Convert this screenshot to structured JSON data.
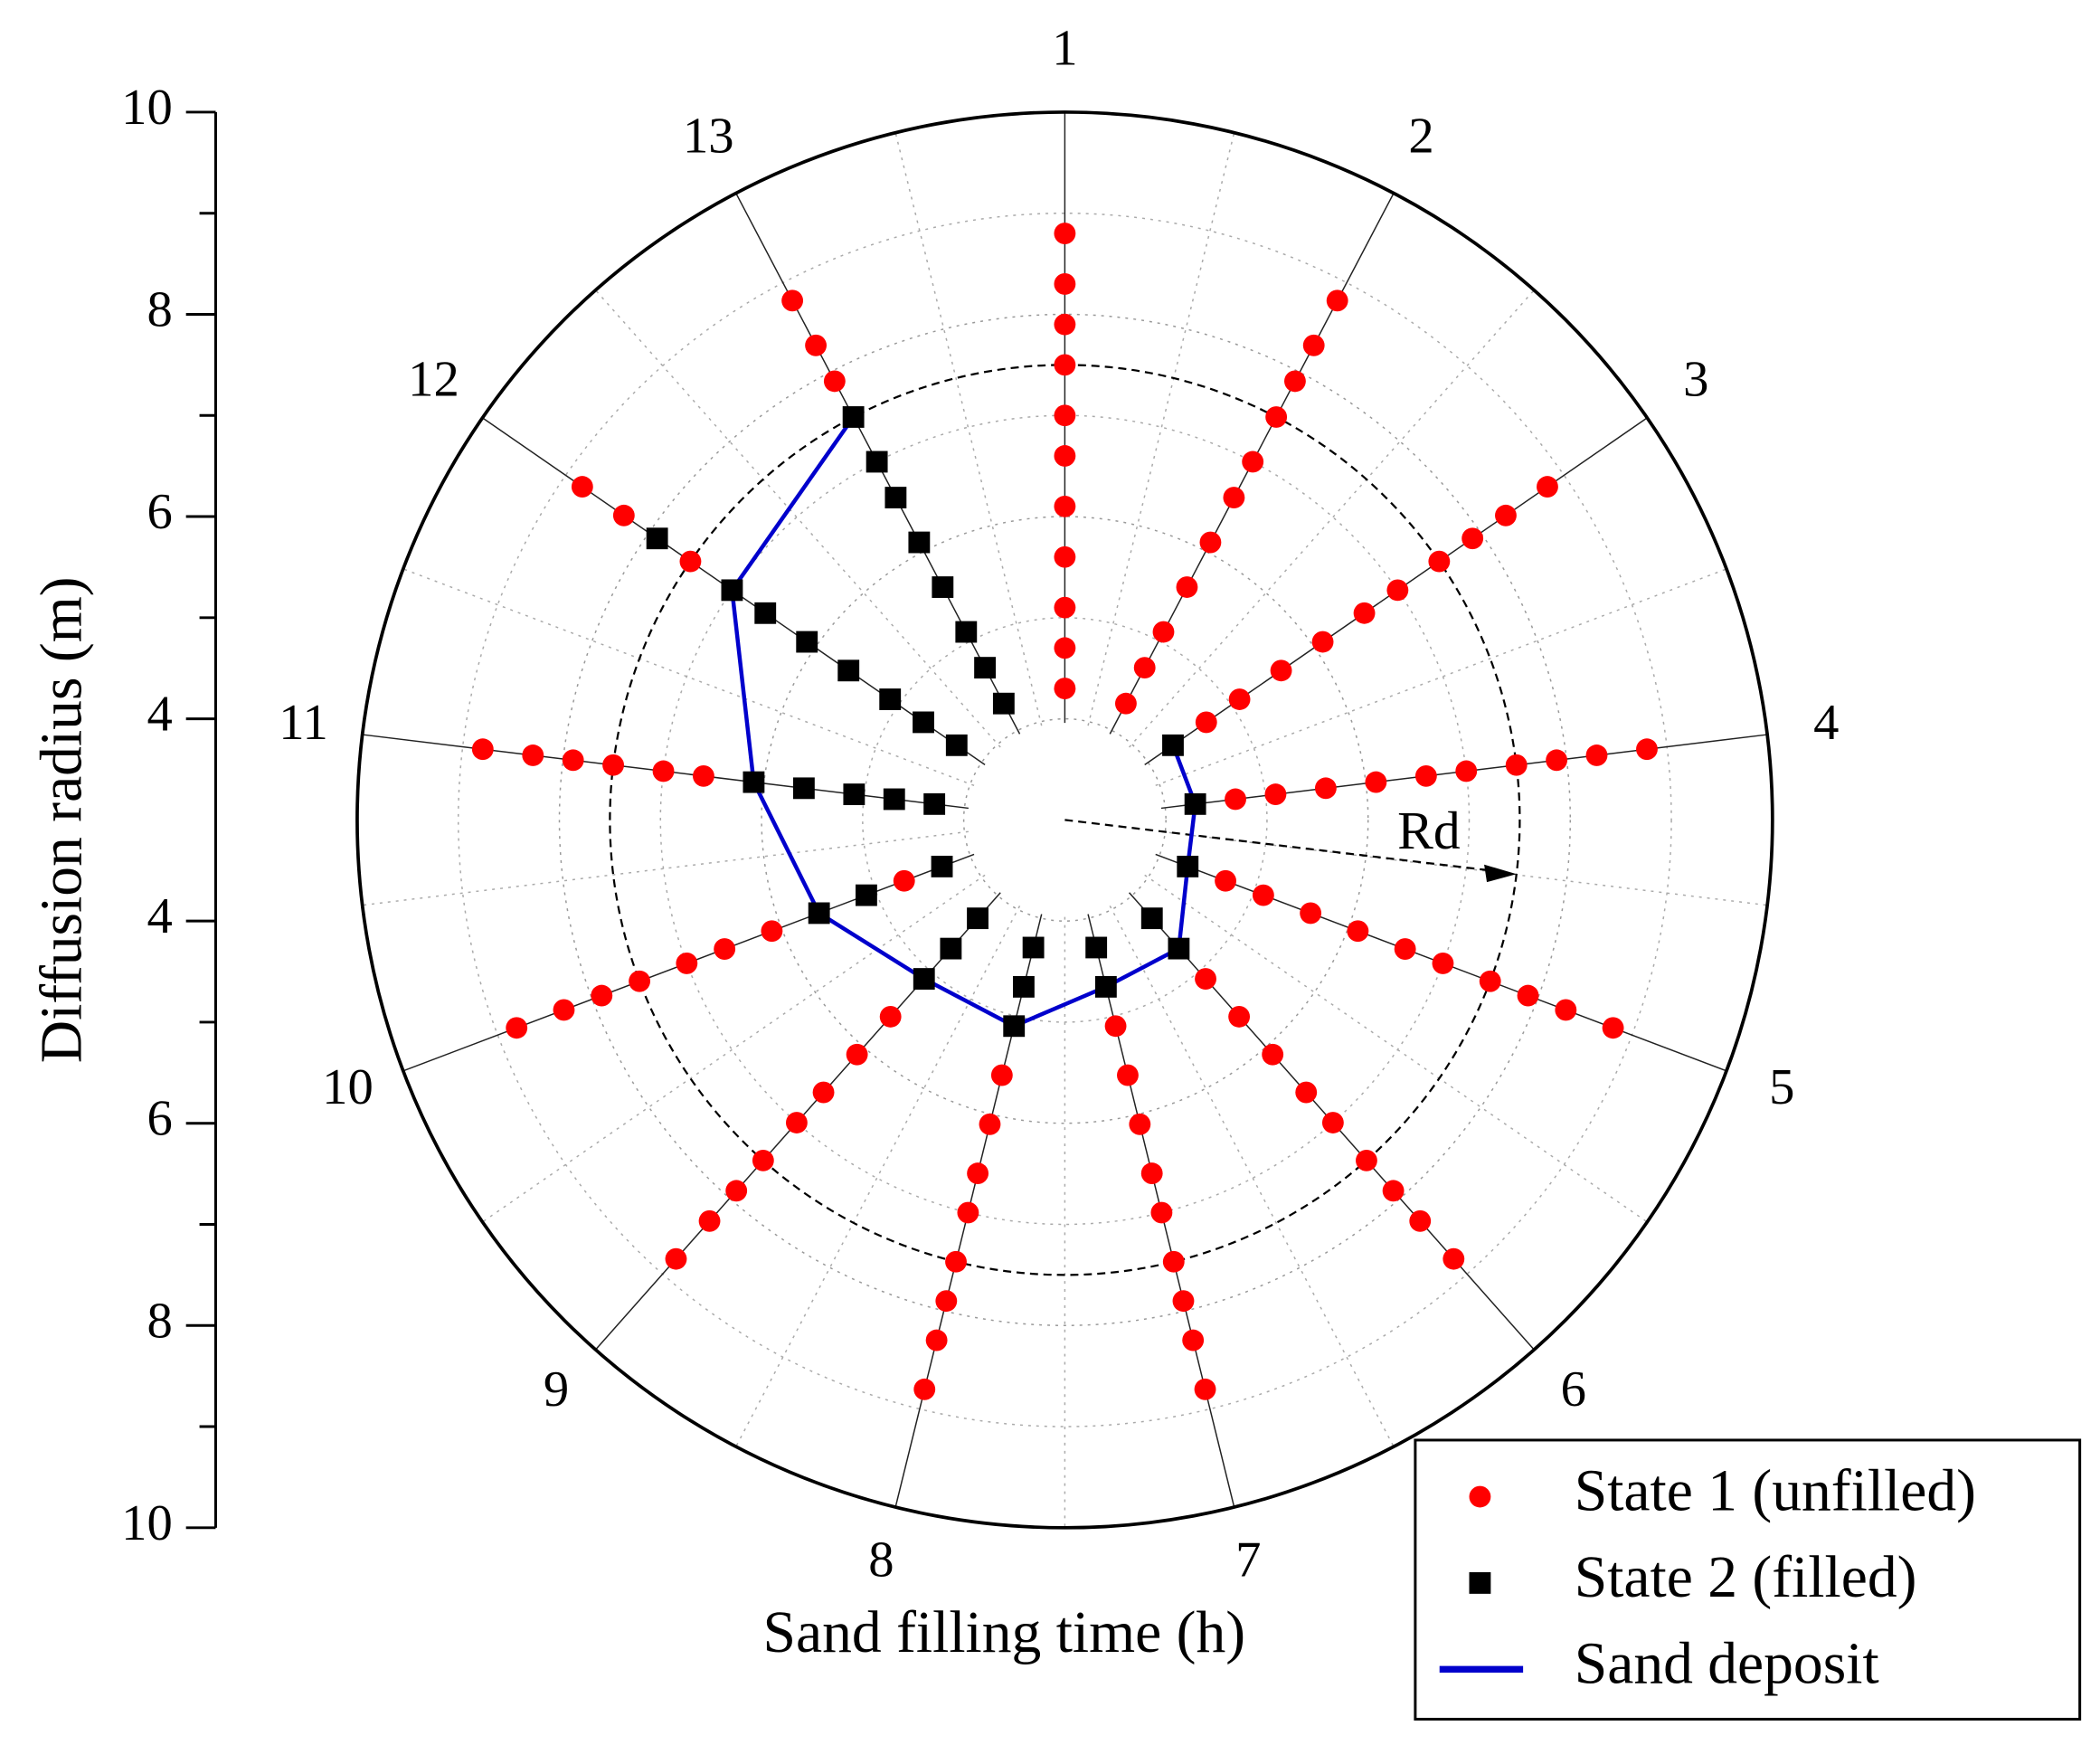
{
  "chart_data": {
    "type": "polar-scatter",
    "xlabel": "Sand filling time (h)",
    "ylabel": "Diffusion radius (m)",
    "thetaticks": [
      1,
      2,
      3,
      4,
      5,
      6,
      7,
      8,
      9,
      10,
      11,
      12,
      13
    ],
    "thetalim": [
      1,
      14
    ],
    "rlim": [
      3,
      10
    ],
    "rticks": [
      4,
      6,
      8,
      10
    ],
    "grid": true,
    "annotation": {
      "text": "Rd",
      "r": 7.5
    },
    "legend": "lower right",
    "series": [
      {
        "name": "State 1 (unfilled)",
        "color": "#ff0000",
        "marker": "circle",
        "x": [
          1,
          1,
          1,
          1,
          1,
          1,
          1,
          1,
          1,
          1,
          1,
          2,
          2,
          2,
          2,
          2,
          2,
          2,
          2,
          2,
          2,
          2,
          3,
          3,
          3,
          3,
          3,
          3,
          3,
          3,
          3,
          3,
          4,
          4,
          4,
          4,
          4,
          4,
          4,
          4,
          4,
          4,
          5,
          5,
          5,
          5,
          5,
          5,
          5,
          5,
          5,
          5,
          6,
          6,
          6,
          6,
          6,
          6,
          6,
          6,
          6,
          7,
          7,
          7,
          7,
          7,
          7,
          7,
          7,
          7,
          8,
          8,
          8,
          8,
          8,
          8,
          8,
          8,
          9,
          9,
          9,
          9,
          9,
          9,
          9,
          9,
          10,
          10,
          10,
          10,
          10,
          10,
          10,
          10,
          11,
          11,
          11,
          11,
          11,
          11,
          12,
          12,
          12,
          13,
          13,
          13
        ],
        "values": [
          4.3,
          4.7,
          5.1,
          5.6,
          6.1,
          6.6,
          7.0,
          7.5,
          7.9,
          8.3,
          8.8,
          4.3,
          4.7,
          5.1,
          5.6,
          6.1,
          6.6,
          7.0,
          7.5,
          7.9,
          8.3,
          8.8,
          4.7,
          5.1,
          5.6,
          6.1,
          6.6,
          7.0,
          7.5,
          7.9,
          8.3,
          8.8,
          4.7,
          5.1,
          5.6,
          6.1,
          6.6,
          7.0,
          7.5,
          7.9,
          8.3,
          8.8,
          4.7,
          5.1,
          5.6,
          6.1,
          6.6,
          7.0,
          7.5,
          7.9,
          8.3,
          8.8,
          5.1,
          5.6,
          6.1,
          6.6,
          7.0,
          7.5,
          7.9,
          8.3,
          8.8,
          5.1,
          5.6,
          6.1,
          6.6,
          7.0,
          7.5,
          7.9,
          8.3,
          8.8,
          5.6,
          6.1,
          6.6,
          7.0,
          7.5,
          7.9,
          8.3,
          8.8,
          5.6,
          6.1,
          6.6,
          7.0,
          7.5,
          7.9,
          8.3,
          8.8,
          4.7,
          6.1,
          6.6,
          7.0,
          7.5,
          7.9,
          8.3,
          8.8,
          6.6,
          7.0,
          7.5,
          7.9,
          8.3,
          8.8,
          7.5,
          8.3,
          8.8,
          7.9,
          8.3,
          8.8
        ]
      },
      {
        "name": "State 2 (filled)",
        "color": "#000000",
        "marker": "square",
        "x": [
          3,
          4,
          5,
          6,
          6,
          7,
          7,
          8,
          8,
          8,
          9,
          9,
          9,
          10,
          10,
          10,
          11,
          11,
          11,
          11,
          11,
          12,
          12,
          12,
          12,
          12,
          12,
          12,
          12,
          13,
          13,
          13,
          13,
          13,
          13,
          13,
          13
        ],
        "values": [
          4.3,
          4.3,
          4.3,
          4.3,
          4.7,
          4.3,
          4.7,
          4.3,
          4.7,
          5.1,
          4.3,
          4.7,
          5.1,
          4.3,
          5.1,
          5.6,
          4.3,
          4.7,
          5.1,
          5.6,
          6.1,
          4.3,
          4.7,
          5.1,
          5.6,
          6.1,
          6.6,
          7.0,
          7.9,
          4.3,
          4.7,
          5.1,
          5.6,
          6.1,
          6.6,
          7.0,
          7.5
        ]
      },
      {
        "name": "Sand deposit",
        "color": "#0000cc",
        "marker": "line",
        "x": [
          3,
          4,
          5,
          6,
          7,
          8,
          9,
          10,
          11,
          12,
          13
        ],
        "values": [
          4.3,
          4.3,
          4.3,
          4.7,
          4.7,
          5.1,
          5.1,
          5.6,
          6.1,
          7.0,
          7.5
        ]
      }
    ]
  }
}
